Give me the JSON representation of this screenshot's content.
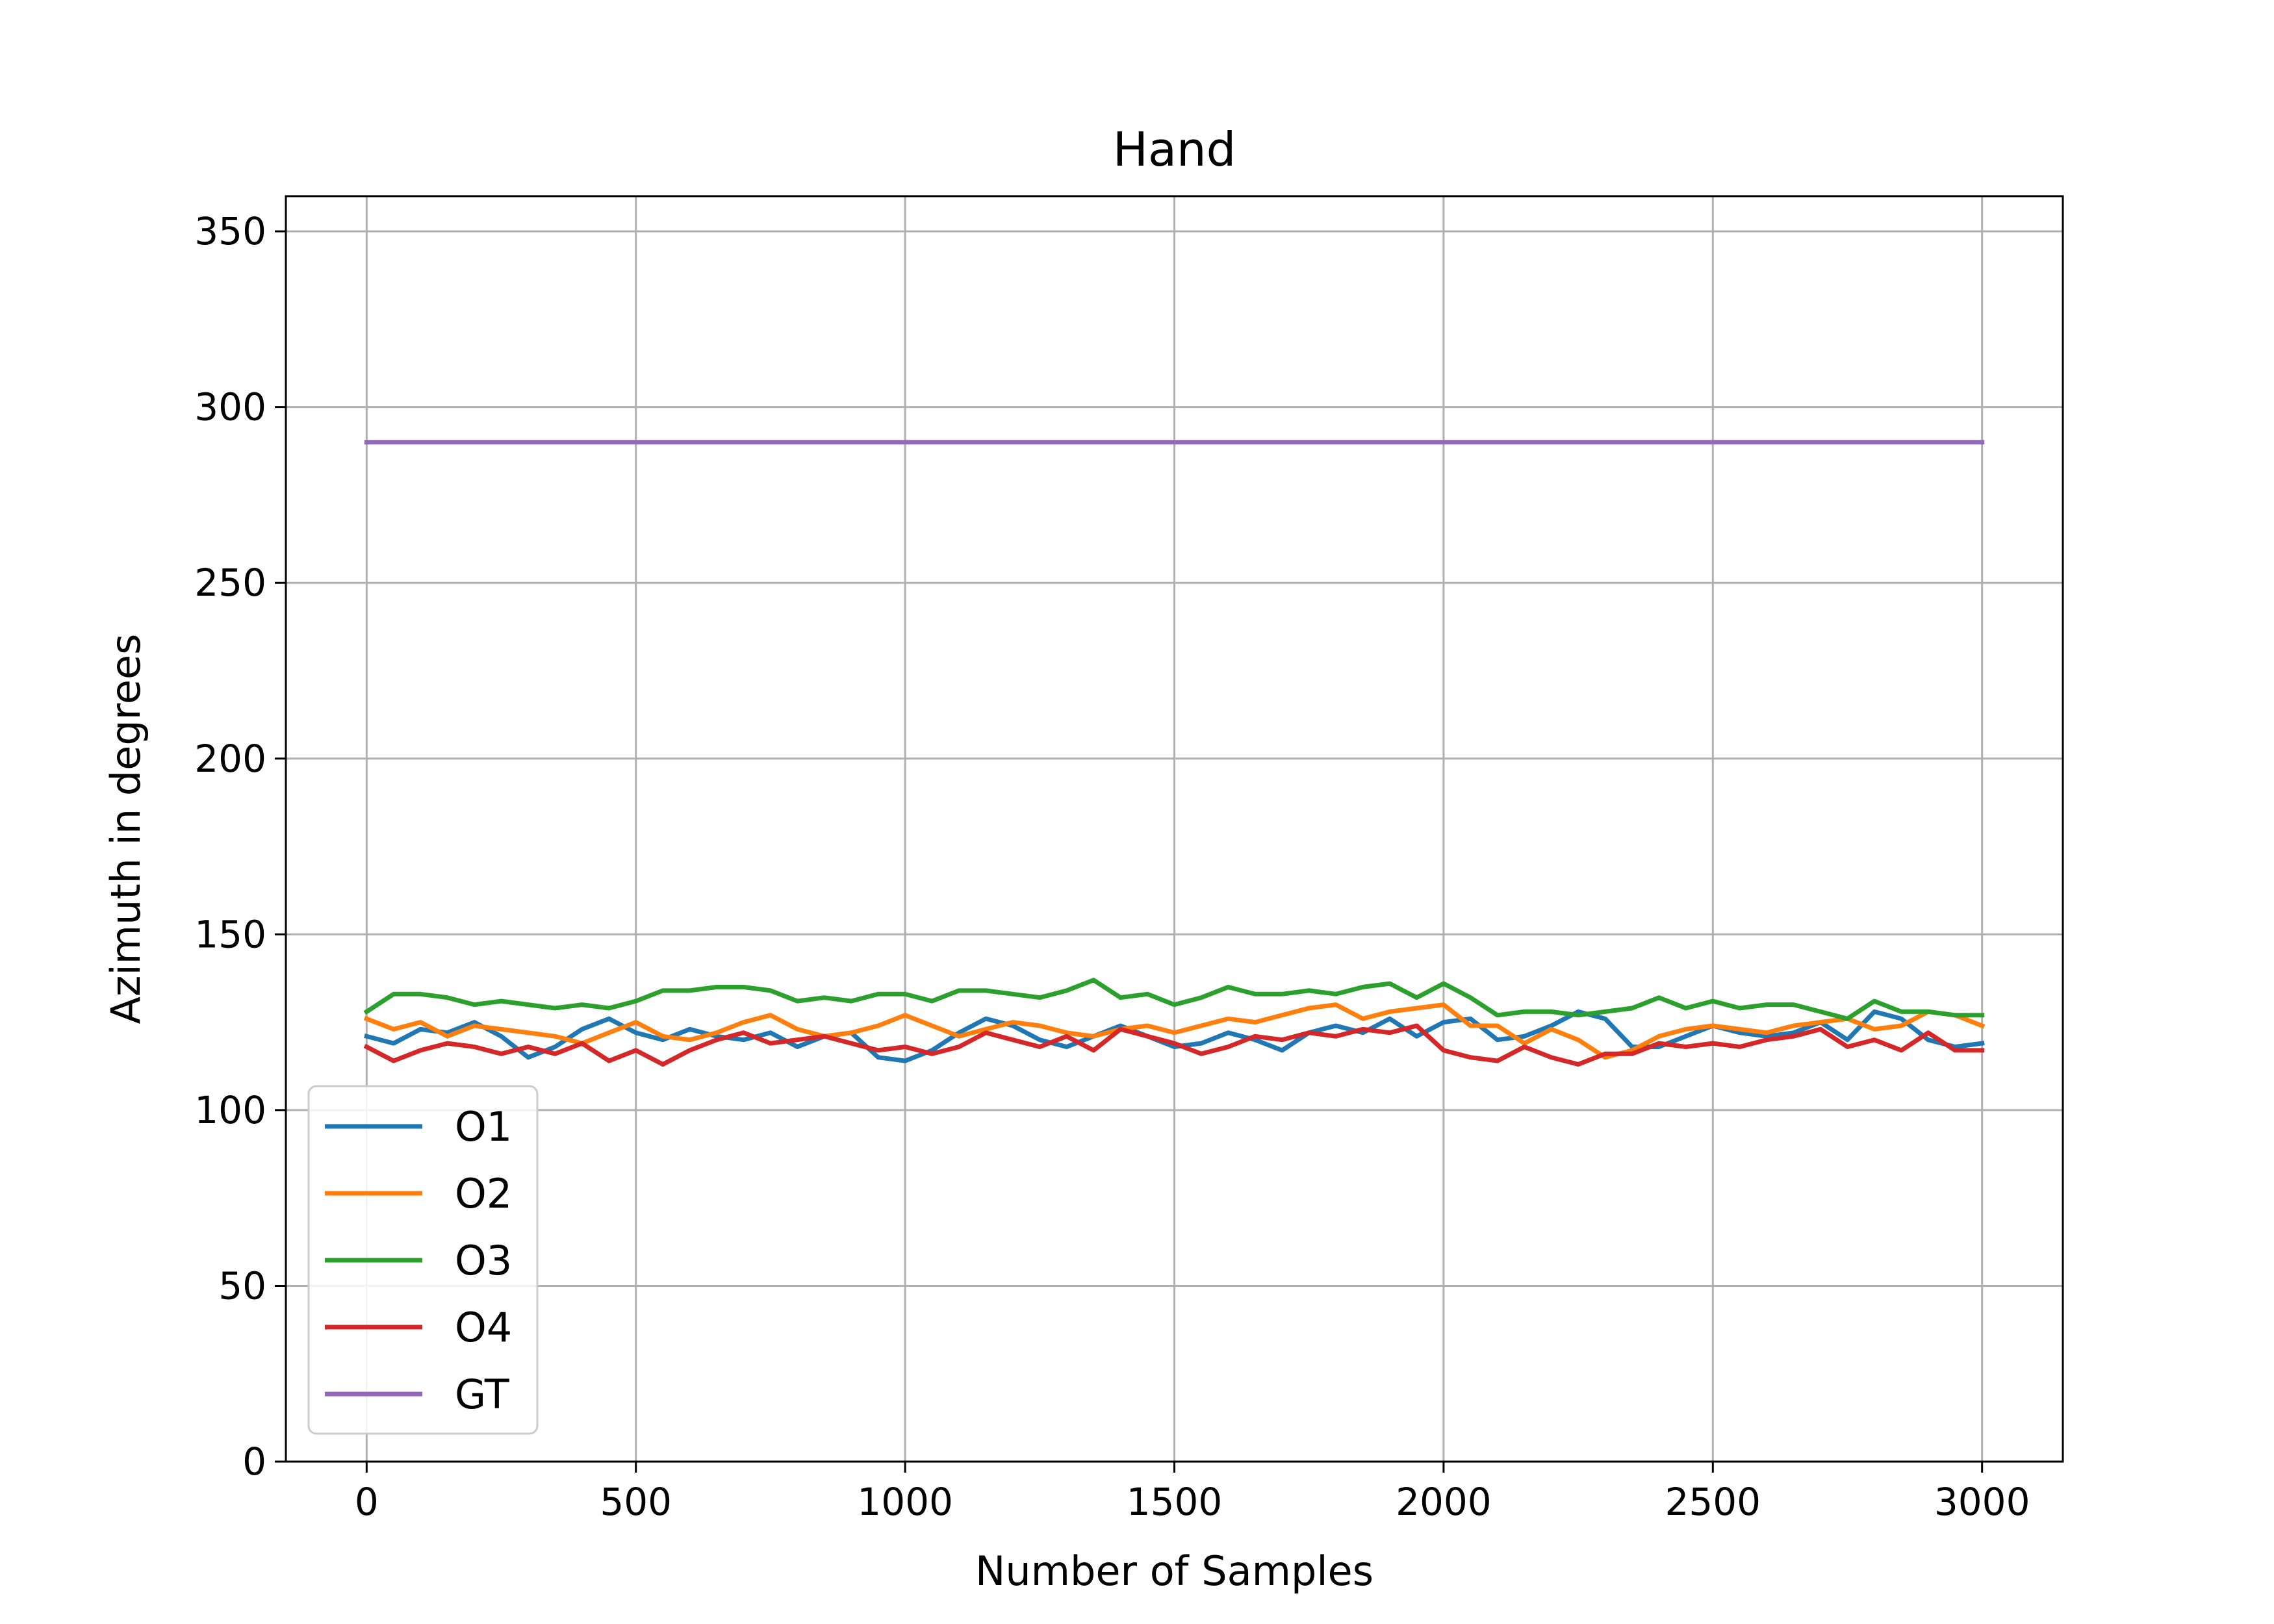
{
  "chart_data": {
    "type": "line",
    "title": "Hand",
    "xlabel": "Number of Samples",
    "ylabel": "Azimuth in degrees",
    "xlim": [
      -150,
      3150
    ],
    "ylim": [
      0,
      360
    ],
    "xticks": [
      0,
      500,
      1000,
      1500,
      2000,
      2500,
      3000
    ],
    "yticks": [
      0,
      50,
      100,
      150,
      200,
      250,
      300,
      350
    ],
    "xtick_labels": [
      "0",
      "500",
      "1000",
      "1500",
      "2000",
      "2500",
      "3000"
    ],
    "ytick_labels": [
      "0",
      "50",
      "100",
      "150",
      "200",
      "250",
      "300",
      "350"
    ],
    "grid": true,
    "legend_position": "lower-left",
    "series": [
      {
        "name": "O1",
        "color": "#1f77b4",
        "x": [
          0,
          50,
          100,
          150,
          200,
          250,
          300,
          350,
          400,
          450,
          500,
          550,
          600,
          650,
          700,
          750,
          800,
          850,
          900,
          950,
          1000,
          1050,
          1100,
          1150,
          1200,
          1250,
          1300,
          1350,
          1400,
          1450,
          1500,
          1550,
          1600,
          1650,
          1700,
          1750,
          1800,
          1850,
          1900,
          1950,
          2000,
          2050,
          2100,
          2150,
          2200,
          2250,
          2300,
          2350,
          2400,
          2450,
          2500,
          2550,
          2600,
          2650,
          2700,
          2750,
          2800,
          2850,
          2900,
          2950,
          3000
        ],
        "y": [
          121,
          119,
          123,
          122,
          125,
          121,
          115,
          118,
          123,
          126,
          122,
          120,
          123,
          121,
          120,
          122,
          118,
          121,
          122,
          115,
          114,
          117,
          122,
          126,
          124,
          120,
          118,
          121,
          124,
          121,
          118,
          119,
          122,
          120,
          117,
          122,
          124,
          122,
          126,
          121,
          125,
          126,
          120,
          121,
          124,
          128,
          126,
          118,
          118,
          121,
          124,
          122,
          121,
          122,
          125,
          120,
          128,
          126,
          120,
          118,
          119
        ]
      },
      {
        "name": "O2",
        "color": "#ff7f0e",
        "x": [
          0,
          50,
          100,
          150,
          200,
          250,
          300,
          350,
          400,
          450,
          500,
          550,
          600,
          650,
          700,
          750,
          800,
          850,
          900,
          950,
          1000,
          1050,
          1100,
          1150,
          1200,
          1250,
          1300,
          1350,
          1400,
          1450,
          1500,
          1550,
          1600,
          1650,
          1700,
          1750,
          1800,
          1850,
          1900,
          1950,
          2000,
          2050,
          2100,
          2150,
          2200,
          2250,
          2300,
          2350,
          2400,
          2450,
          2500,
          2550,
          2600,
          2650,
          2700,
          2750,
          2800,
          2850,
          2900,
          2950,
          3000
        ],
        "y": [
          126,
          123,
          125,
          121,
          124,
          123,
          122,
          121,
          119,
          122,
          125,
          121,
          120,
          122,
          125,
          127,
          123,
          121,
          122,
          124,
          127,
          124,
          121,
          123,
          125,
          124,
          122,
          121,
          123,
          124,
          122,
          124,
          126,
          125,
          127,
          129,
          130,
          126,
          128,
          129,
          130,
          124,
          124,
          119,
          123,
          120,
          115,
          117,
          121,
          123,
          124,
          123,
          122,
          124,
          125,
          126,
          123,
          124,
          128,
          127,
          124
        ]
      },
      {
        "name": "O3",
        "color": "#2ca02c",
        "x": [
          0,
          50,
          100,
          150,
          200,
          250,
          300,
          350,
          400,
          450,
          500,
          550,
          600,
          650,
          700,
          750,
          800,
          850,
          900,
          950,
          1000,
          1050,
          1100,
          1150,
          1200,
          1250,
          1300,
          1350,
          1400,
          1450,
          1500,
          1550,
          1600,
          1650,
          1700,
          1750,
          1800,
          1850,
          1900,
          1950,
          2000,
          2050,
          2100,
          2150,
          2200,
          2250,
          2300,
          2350,
          2400,
          2450,
          2500,
          2550,
          2600,
          2650,
          2700,
          2750,
          2800,
          2850,
          2900,
          2950,
          3000
        ],
        "y": [
          128,
          133,
          133,
          132,
          130,
          131,
          130,
          129,
          130,
          129,
          131,
          134,
          134,
          135,
          135,
          134,
          131,
          132,
          131,
          133,
          133,
          131,
          134,
          134,
          133,
          132,
          134,
          137,
          132,
          133,
          130,
          132,
          135,
          133,
          133,
          134,
          133,
          135,
          136,
          132,
          136,
          132,
          127,
          128,
          128,
          127,
          128,
          129,
          132,
          129,
          131,
          129,
          130,
          130,
          128,
          126,
          131,
          128,
          128,
          127,
          127
        ]
      },
      {
        "name": "O4",
        "color": "#d62728",
        "x": [
          0,
          50,
          100,
          150,
          200,
          250,
          300,
          350,
          400,
          450,
          500,
          550,
          600,
          650,
          700,
          750,
          800,
          850,
          900,
          950,
          1000,
          1050,
          1100,
          1150,
          1200,
          1250,
          1300,
          1350,
          1400,
          1450,
          1500,
          1550,
          1600,
          1650,
          1700,
          1750,
          1800,
          1850,
          1900,
          1950,
          2000,
          2050,
          2100,
          2150,
          2200,
          2250,
          2300,
          2350,
          2400,
          2450,
          2500,
          2550,
          2600,
          2650,
          2700,
          2750,
          2800,
          2850,
          2900,
          2950,
          3000
        ],
        "y": [
          118,
          114,
          117,
          119,
          118,
          116,
          118,
          116,
          119,
          114,
          117,
          113,
          117,
          120,
          122,
          119,
          120,
          121,
          119,
          117,
          118,
          116,
          118,
          122,
          120,
          118,
          121,
          117,
          123,
          121,
          119,
          116,
          118,
          121,
          120,
          122,
          121,
          123,
          122,
          124,
          117,
          115,
          114,
          118,
          115,
          113,
          116,
          116,
          119,
          118,
          119,
          118,
          120,
          121,
          123,
          118,
          120,
          117,
          122,
          117,
          117
        ]
      },
      {
        "name": "GT",
        "color": "#9467bd",
        "x": [
          0,
          3000
        ],
        "y": [
          290,
          290
        ]
      }
    ]
  }
}
